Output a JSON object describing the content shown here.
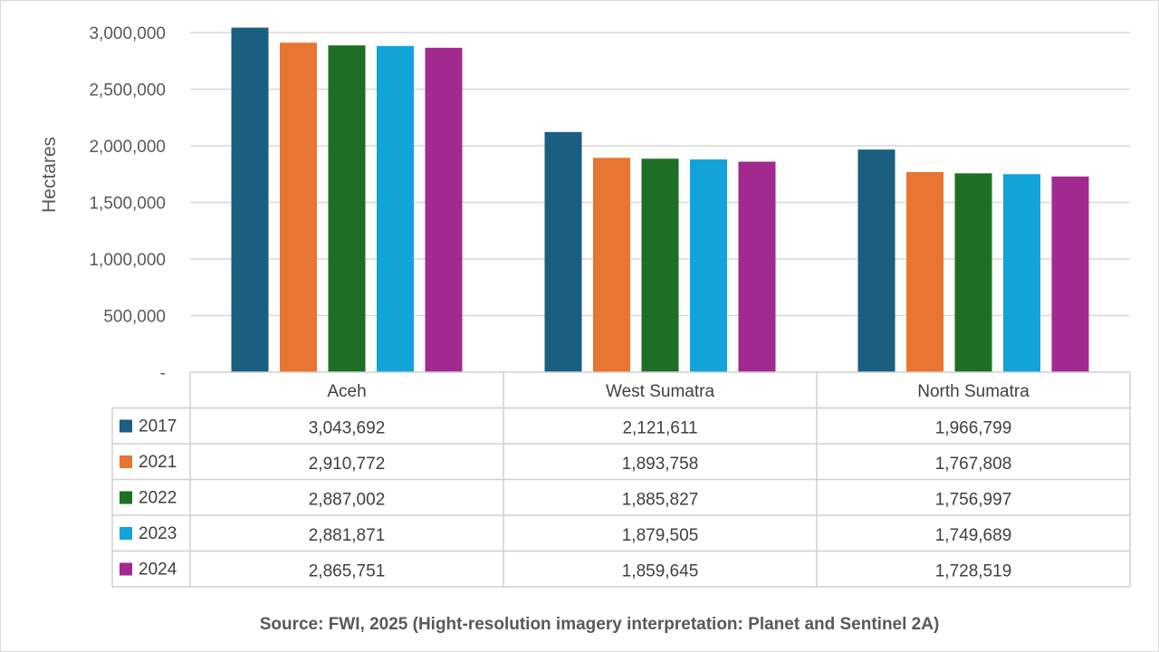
{
  "chart_data": {
    "type": "bar",
    "title": "",
    "xlabel": "",
    "ylabel": "Hectares",
    "ylim": [
      0,
      3000000
    ],
    "y_ticks": [
      "-",
      "500,000",
      "1,000,000",
      "1,500,000",
      "2,000,000",
      "2,500,000",
      "3,000,000"
    ],
    "y_tick_values": [
      0,
      500000,
      1000000,
      1500000,
      2000000,
      2500000,
      3000000
    ],
    "grid": true,
    "legend": "data-table",
    "categories": [
      "Aceh",
      "West Sumatra",
      "North Sumatra"
    ],
    "series": [
      {
        "name": "2017",
        "color": "#1a5e80",
        "values": [
          3043692,
          2121611,
          1966799
        ],
        "labels": [
          "3,043,692",
          "2,121,611",
          "1,966,799"
        ]
      },
      {
        "name": "2021",
        "color": "#e87532",
        "values": [
          2910772,
          1893758,
          1767808
        ],
        "labels": [
          "2,910,772",
          "1,893,758",
          "1,767,808"
        ]
      },
      {
        "name": "2022",
        "color": "#1f6e25",
        "values": [
          2887002,
          1885827,
          1756997
        ],
        "labels": [
          "2,887,002",
          "1,885,827",
          "1,756,997"
        ]
      },
      {
        "name": "2023",
        "color": "#12a3d9",
        "values": [
          2881871,
          1879505,
          1749689
        ],
        "labels": [
          "2,881,871",
          "1,879,505",
          "1,749,689"
        ]
      },
      {
        "name": "2024",
        "color": "#a2298f",
        "values": [
          2865751,
          1859645,
          1728519
        ],
        "labels": [
          "2,865,751",
          "1,859,645",
          "1,728,519"
        ]
      }
    ]
  },
  "source": "Source: FWI, 2025 (Hight-resolution imagery interpretation: Planet and Sentinel 2A)"
}
